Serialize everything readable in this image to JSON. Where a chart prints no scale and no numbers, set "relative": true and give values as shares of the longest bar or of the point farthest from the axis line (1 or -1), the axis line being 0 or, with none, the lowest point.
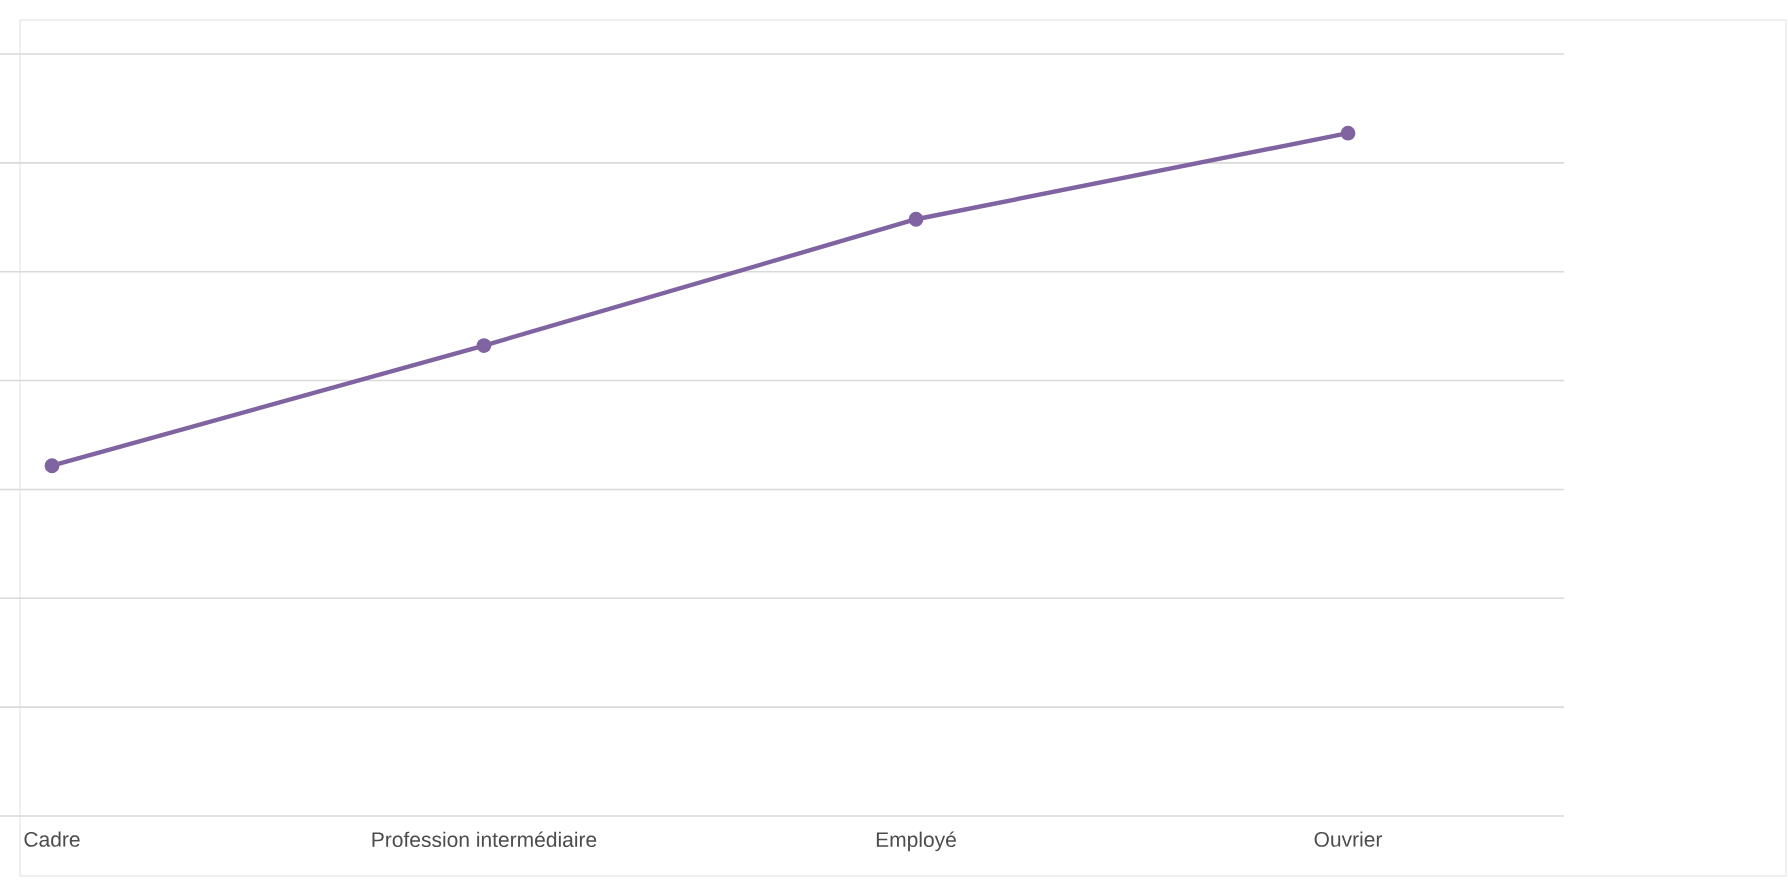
{
  "chart_data": {
    "type": "line",
    "relative": true,
    "categories": [
      "Cadre",
      "Profession intermédiaire",
      "Employé",
      "Ouvrier"
    ],
    "series": [
      {
        "color": "#8064a2",
        "values": [
          0.513,
          0.689,
          0.874,
          1
        ]
      }
    ],
    "grid": "y",
    "marker": "circle",
    "line_style": "solid"
  }
}
